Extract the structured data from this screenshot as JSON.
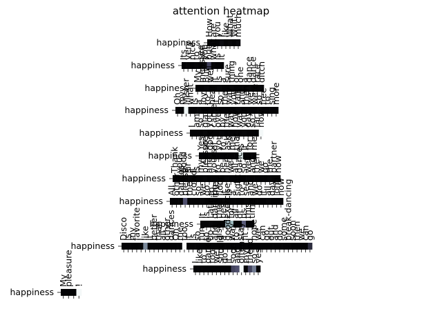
{
  "chart_data": {
    "type": "heatmap",
    "title": "attention heatmap",
    "rows": [
      {
        "label": "happiness",
        "tokens": [
          "How",
          "are",
          "you",
          "I",
          "like",
          "What",
          "Wait",
          "much"
        ],
        "values": [
          0.02,
          0.03,
          0.02,
          0.05,
          0.02,
          0.03,
          0.02,
          0.04
        ]
      },
      {
        "label": "happiness",
        "tokens": [
          "Its",
          "very",
          "nice",
          "to",
          "see",
          "you",
          "but",
          "what",
          "is",
          "it"
        ],
        "values": [
          0.02,
          0.03,
          0.02,
          0.03,
          0.02,
          0.04,
          0.3,
          0.03,
          0.02,
          0.02
        ]
      },
      {
        "label": "happiness",
        "tokens": [
          "My",
          "measure",
          "But",
          "well",
          "it",
          "is",
          "a",
          "sure",
          "thing",
          "or",
          "one",
          "a",
          "dance",
          "dance",
          "race",
          "ditch"
        ],
        "values": [
          0.02,
          0.02,
          0.03,
          0.02,
          0.02,
          0.03,
          0.02,
          0.02,
          0.03,
          0.02,
          0.02,
          0.02,
          0.03,
          0.02,
          0.02,
          0.03
        ]
      },
      {
        "label": "happiness",
        "tokens": [
          "Oh",
          "my",
          "Mister",
          "what",
          "is",
          "a",
          "joy",
          "to",
          "hear",
          "it",
          "so",
          "the",
          "way",
          "you",
          "talk",
          "and",
          "then",
          "we",
          "were",
          "so",
          "free",
          "to",
          "sing",
          "more"
        ],
        "values": [
          0.02,
          0.02,
          0.95,
          0.02,
          0.02,
          0.03,
          0.02,
          0.02,
          0.02,
          0.03,
          0.02,
          0.02,
          0.02,
          0.02,
          0.03,
          0.02,
          0.02,
          0.02,
          0.02,
          0.03,
          0.02,
          0.02,
          0.02,
          0.02
        ]
      },
      {
        "label": "happiness",
        "tokens": [
          "I",
          "am",
          "so",
          "glad",
          "you",
          "came",
          "over",
          "by",
          "the",
          "way",
          "how",
          "was",
          "your",
          "day",
          "so",
          "far",
          "now"
        ],
        "values": [
          0.02,
          0.02,
          0.02,
          0.03,
          0.02,
          0.02,
          0.02,
          0.03,
          0.02,
          0.02,
          0.02,
          0.02,
          0.03,
          0.02,
          0.02,
          0.02,
          0.97
        ]
      },
      {
        "label": "happiness",
        "tokens": [
          "Yes",
          "so",
          "good",
          "of",
          "you",
          "to",
          "ask",
          "me",
          "that",
          "is",
          "it",
          "for",
          "me"
        ],
        "values": [
          0.02,
          0.02,
          0.03,
          0.02,
          0.02,
          0.02,
          0.03,
          0.02,
          0.02,
          0.9,
          0.02,
          0.02,
          0.02
        ]
      },
      {
        "label": "happiness",
        "tokens": [
          "Thank",
          "you",
          "good",
          "sir",
          "it",
          "is",
          "my",
          "pleasure",
          "and",
          "yours",
          "to",
          "be",
          "here",
          "we",
          "all",
          "dance",
          "so",
          "well",
          "and",
          "then",
          "we",
          "go",
          "the",
          "partner",
          "now"
        ],
        "values": [
          0.02,
          0.02,
          0.02,
          0.03,
          0.02,
          0.02,
          0.02,
          0.03,
          0.02,
          0.02,
          0.02,
          0.02,
          0.03,
          0.02,
          0.02,
          0.02,
          0.02,
          0.03,
          0.02,
          0.02,
          0.02,
          0.02,
          0.03,
          0.02,
          0.02
        ]
      },
      {
        "label": "happiness",
        "tokens": [
          "All",
          "other",
          "dances",
          "please",
          "the",
          "crowd",
          "so",
          "we",
          "go",
          "to",
          "the",
          "floor",
          "it",
          "is",
          "a",
          "sight",
          "to",
          "see",
          "and",
          "we",
          "do",
          "it",
          "all",
          "day",
          "long",
          "now"
        ],
        "values": [
          0.02,
          0.02,
          0.02,
          0.35,
          0.02,
          0.02,
          0.02,
          0.03,
          0.02,
          0.02,
          0.02,
          0.02,
          0.03,
          0.02,
          0.02,
          0.02,
          0.02,
          0.03,
          0.02,
          0.02,
          0.02,
          0.02,
          0.03,
          0.02,
          0.02,
          0.02
        ]
      },
      {
        "label": "happiness",
        "tokens": [
          "It",
          "is",
          "Latin",
          "dancing",
          "the",
          "best",
          "exercise",
          "for",
          "all",
          "of",
          "us",
          "this",
          "time"
        ],
        "values": [
          0.02,
          0.02,
          0.03,
          0.02,
          0.02,
          0.02,
          0.65,
          0.7,
          0.02,
          0.02,
          0.4,
          0.02,
          0.02
        ]
      },
      {
        "label": "happiness",
        "tokens": [
          "Disco",
          "is",
          "my",
          "favorite",
          "I",
          "like",
          "it",
          "better",
          "than",
          "all",
          "other",
          "dances",
          "Oh",
          "me",
          "too",
          "it",
          "is",
          "so",
          "fun",
          "to",
          "do",
          "and",
          "also",
          "a",
          "good",
          "way",
          "to",
          "stay",
          "fit",
          "I",
          "hope",
          "we",
          "can",
          "go",
          "out",
          "and",
          "do",
          "some",
          "break-dancing",
          "soon",
          "then",
          "we",
          "can",
          "go"
        ],
        "values": [
          0.02,
          0.02,
          0.02,
          0.02,
          0.02,
          0.55,
          0.02,
          0.02,
          0.02,
          0.02,
          0.02,
          0.02,
          0.02,
          0.02,
          0.98,
          0.02,
          0.02,
          0.02,
          0.02,
          0.02,
          0.02,
          0.02,
          0.02,
          0.02,
          0.02,
          0.02,
          0.02,
          0.02,
          0.02,
          0.02,
          0.02,
          0.02,
          0.02,
          0.02,
          0.02,
          0.02,
          0.02,
          0.02,
          0.02,
          0.02,
          0.02,
          0.02,
          0.02,
          0.2
        ]
      },
      {
        "label": "happiness",
        "tokens": [
          "I",
          "like",
          "to",
          "dance",
          "too",
          "we",
          "should",
          "do",
          "it",
          "soon",
          "and",
          "often",
          "my",
          "friend",
          "so",
          "yes"
        ],
        "values": [
          0.02,
          0.02,
          0.02,
          0.02,
          0.02,
          0.02,
          0.02,
          0.02,
          0.02,
          0.3,
          0.35,
          0.97,
          0.02,
          0.3,
          0.5,
          0.02
        ]
      },
      {
        "label": "happiness",
        "tokens": [
          "My",
          "pleasure",
          ".",
          "!"
        ],
        "values": [
          0.02,
          0.02,
          0.02,
          0.97
        ]
      }
    ]
  }
}
